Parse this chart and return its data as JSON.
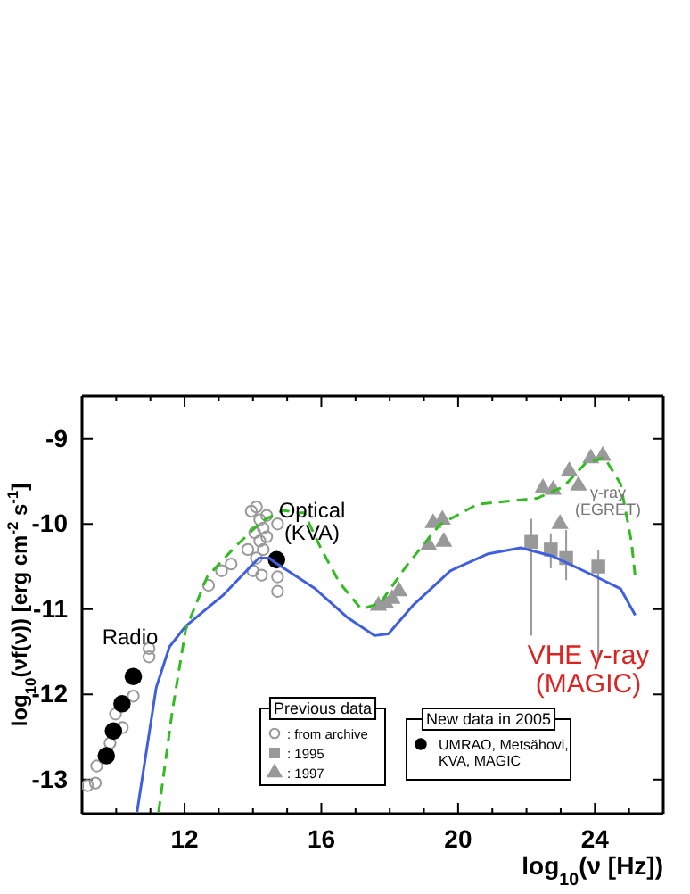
{
  "chart_data": {
    "type": "scatter",
    "xlabel": "log$_{10}$(ν [Hz])",
    "ylabel": "log$_{10}$(νf(ν)) [erg cm$^{-2}$ s$^{-1}$]",
    "legend_title": "Previous data",
    "legend": "bottom",
    "grid": false,
    "xlim": [
      9,
      26
    ],
    "ylim": [
      -13.4,
      -8.5
    ],
    "xticks": [
      {
        "value": 10,
        "label": null
      },
      {
        "value": 11,
        "label": null
      },
      12,
      {
        "value": 13,
        "label": null
      },
      {
        "value": 14,
        "label": null
      },
      {
        "value": 15,
        "label": null
      },
      16,
      {
        "value": 17,
        "label": null
      },
      {
        "value": 18,
        "label": null
      },
      {
        "value": 19,
        "label": null
      },
      20,
      {
        "value": 21,
        "label": null
      },
      {
        "value": 22,
        "label": null
      },
      {
        "value": 23,
        "label": null
      },
      24,
      {
        "value": 25,
        "label": null
      }
    ],
    "yticks": [
      -13,
      -12,
      -11,
      -10,
      -9
    ],
    "series": [
      {
        "name": ": from archive",
        "marker": "circle",
        "color": "#999999",
        "x": [
          9.16,
          9.39,
          9.43,
          9.82,
          9.98,
          10.18,
          10.5,
          10.96,
          10.96,
          12.7,
          13.08,
          13.36,
          13.85,
          13.95,
          14.05,
          14.1,
          14.1,
          14.2,
          14.2,
          14.3,
          14.3,
          14.4,
          14.4,
          14.0,
          14.25,
          14.72,
          14.72,
          14.72
        ],
        "values": [
          -13.07,
          -13.04,
          -12.84,
          -12.57,
          -12.23,
          -12.39,
          -12.02,
          -11.46,
          -11.56,
          -10.72,
          -10.55,
          -10.47,
          -10.3,
          -9.85,
          -10.1,
          -9.8,
          -10.4,
          -9.95,
          -10.2,
          -10.05,
          -10.3,
          -9.9,
          -10.15,
          -10.55,
          -10.6,
          -10.0,
          -10.62,
          -10.79
        ]
      },
      {
        "name": ": 1995",
        "marker": "square",
        "color": "#999999",
        "x": [
          22.14,
          22.71,
          23.16,
          24.1
        ],
        "values": [
          -10.21,
          -10.3,
          -10.4,
          -10.5
        ],
        "errors": [
          [
            -11.31,
            -9.94
          ],
          [
            -10.52,
            -10.11
          ],
          [
            -10.66,
            -10.07
          ],
          [
            -11.58,
            -10.31
          ]
        ]
      },
      {
        "name": ": 1997",
        "marker": "triangle",
        "color": "#999999",
        "x": [
          17.67,
          17.88,
          18.07,
          18.27,
          19.14,
          19.27,
          19.54,
          19.58,
          22.48,
          22.78,
          22.98,
          23.25,
          23.52,
          23.88,
          24.23
        ],
        "values": [
          -10.96,
          -10.93,
          -10.88,
          -10.79,
          -10.25,
          -9.99,
          -9.95,
          -10.21,
          -9.58,
          -9.6,
          -10.0,
          -9.38,
          -9.55,
          -9.23,
          -9.2
        ]
      },
      {
        "name": "UMRAO, Metsähovi, KVA, MAGIC",
        "marker": "circle",
        "color": "#000000",
        "x": [
          9.71,
          9.92,
          10.17,
          10.5,
          14.69
        ],
        "values": [
          -12.72,
          -12.43,
          -12.11,
          -11.79,
          -10.42
        ]
      },
      {
        "type": "line",
        "line_style": "solid",
        "color": "#3f5fe0",
        "x": [
          10.61,
          11.17,
          11.56,
          12.03,
          13.14,
          14.17,
          14.48,
          14.64,
          15.82,
          16.77,
          17.56,
          17.96,
          18.67,
          19.77,
          20.88,
          21.83,
          22.78,
          24.04,
          24.75,
          25.18
        ],
        "values": [
          -13.38,
          -11.92,
          -11.44,
          -11.2,
          -10.83,
          -10.4,
          -10.4,
          -10.45,
          -10.76,
          -11.1,
          -11.31,
          -11.29,
          -10.96,
          -10.55,
          -10.35,
          -10.28,
          -10.38,
          -10.62,
          -10.76,
          -11.07
        ]
      },
      {
        "type": "line",
        "line_style": "dashed",
        "color": "#33bb22",
        "x": [
          11.24,
          11.64,
          12.03,
          12.66,
          13.45,
          14.25,
          14.88,
          15.35,
          15.5,
          15.98,
          16.53,
          17.17,
          17.72,
          18.51,
          19.46,
          20.56,
          21.51,
          22.3,
          23.09,
          23.72,
          24.28,
          24.75,
          25.07,
          25.18
        ],
        "values": [
          -13.38,
          -12.2,
          -11.24,
          -10.62,
          -10.28,
          -9.97,
          -9.84,
          -9.87,
          -9.87,
          -10.28,
          -10.69,
          -11.0,
          -10.93,
          -10.48,
          -10.01,
          -9.77,
          -9.73,
          -9.7,
          -9.56,
          -9.29,
          -9.22,
          -9.53,
          -10.21,
          -10.62
        ]
      }
    ],
    "annotations": [
      "Radio",
      "Optical\n(KVA)",
      "γ-ray\n(EGRET)",
      "VHE γ-ray\n(MAGIC)",
      "New data in 2005"
    ]
  }
}
